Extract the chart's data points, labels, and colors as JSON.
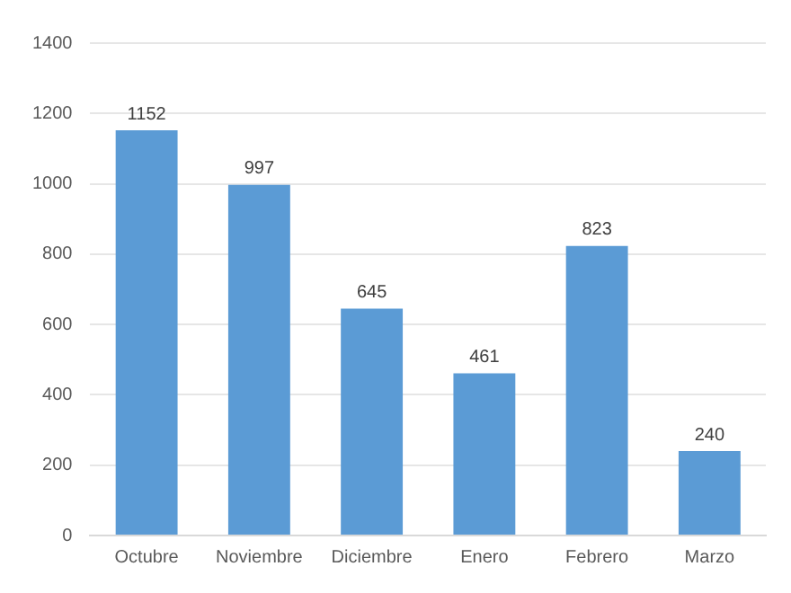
{
  "chart_data": {
    "type": "bar",
    "categories": [
      "Octubre",
      "Noviembre",
      "Diciembre",
      "Enero",
      "Febrero",
      "Marzo"
    ],
    "values": [
      1152,
      997,
      645,
      461,
      823,
      240
    ],
    "color": "#5b9bd5",
    "ylim": [
      0,
      1400
    ],
    "yticks": [
      0,
      200,
      400,
      600,
      800,
      1000,
      1200,
      1400
    ],
    "grid": "y",
    "data_labels": true,
    "legend": false
  }
}
